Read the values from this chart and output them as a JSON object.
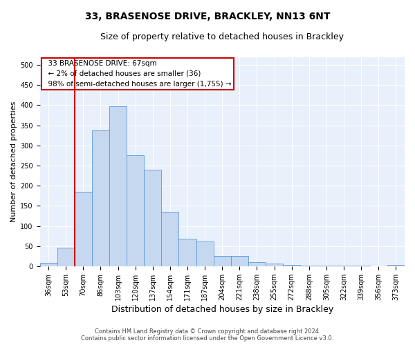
{
  "title": "33, BRASENOSE DRIVE, BRACKLEY, NN13 6NT",
  "subtitle": "Size of property relative to detached houses in Brackley",
  "xlabel": "Distribution of detached houses by size in Brackley",
  "ylabel": "Number of detached properties",
  "categories": [
    "36sqm",
    "53sqm",
    "70sqm",
    "86sqm",
    "103sqm",
    "120sqm",
    "137sqm",
    "154sqm",
    "171sqm",
    "187sqm",
    "204sqm",
    "221sqm",
    "238sqm",
    "255sqm",
    "272sqm",
    "288sqm",
    "305sqm",
    "322sqm",
    "339sqm",
    "356sqm",
    "373sqm"
  ],
  "values": [
    8,
    46,
    185,
    337,
    398,
    276,
    240,
    136,
    68,
    62,
    25,
    25,
    10,
    6,
    3,
    2,
    1,
    1,
    1,
    0,
    4
  ],
  "bar_color": "#c5d8f0",
  "bar_edge_color": "#5b9bd5",
  "annotation_title": "33 BRASENOSE DRIVE: 67sqm",
  "annotation_line1": "← 2% of detached houses are smaller (36)",
  "annotation_line2": "98% of semi-detached houses are larger (1,755) →",
  "vline_color": "#cc0000",
  "annotation_box_color": "#ffffff",
  "annotation_box_edge": "#cc0000",
  "footer1": "Contains HM Land Registry data © Crown copyright and database right 2024.",
  "footer2": "Contains public sector information licensed under the Open Government Licence v3.0.",
  "ylim": [
    0,
    520
  ],
  "yticks": [
    0,
    50,
    100,
    150,
    200,
    250,
    300,
    350,
    400,
    450,
    500
  ],
  "bg_color": "#e8f0fb",
  "grid_color": "#ffffff",
  "fig_bg_color": "#ffffff",
  "title_fontsize": 10,
  "subtitle_fontsize": 9,
  "xlabel_fontsize": 9,
  "ylabel_fontsize": 8,
  "tick_fontsize": 7,
  "annotation_fontsize": 7.5,
  "footer_fontsize": 6
}
